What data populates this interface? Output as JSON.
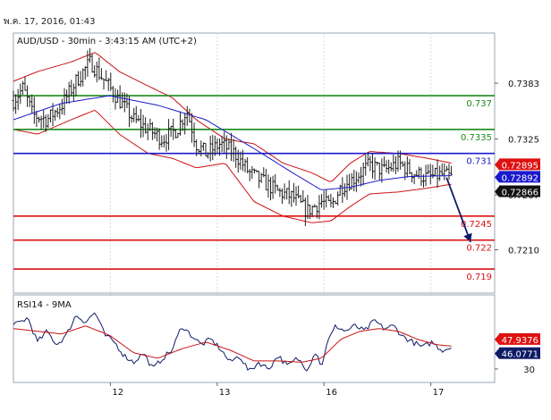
{
  "header": {
    "timestamp": "พ.ค. 17, 2016, 01:43"
  },
  "chart_data": [
    {
      "type": "candlestick",
      "title": "AUD/USD - 30min - 3:43:15 AM (UTC+2)",
      "ylim": [
        0.7165,
        0.7435
      ],
      "y_ticks": [
        {
          "value": 0.7383,
          "label": "0.7383"
        },
        {
          "value": 0.7325,
          "label": "0.7325"
        },
        {
          "value": 0.7267,
          "label": "0.7267"
        },
        {
          "value": 0.721,
          "label": "0.7210"
        }
      ],
      "x_ticks": [
        {
          "t": 0.22,
          "label": "12"
        },
        {
          "t": 0.442,
          "label": "13"
        },
        {
          "t": 0.664,
          "label": "16"
        },
        {
          "t": 0.886,
          "label": "17"
        }
      ],
      "levels": [
        {
          "value": 0.737,
          "label": "0.737",
          "color": "#1b8a1b"
        },
        {
          "value": 0.7335,
          "label": "0.7335",
          "color": "#1b8a1b"
        },
        {
          "value": 0.731,
          "label": "0.731",
          "color": "#1a1acc"
        },
        {
          "value": 0.7245,
          "label": "0.7245",
          "color": "#dd1111"
        },
        {
          "value": 0.722,
          "label": "0.722",
          "color": "#dd1111"
        },
        {
          "value": 0.719,
          "label": "0.719",
          "color": "#dd1111"
        }
      ],
      "badges": [
        {
          "value": 0.7289,
          "label": "0.72895",
          "color": "#dd1111"
        },
        {
          "value": 0.7289,
          "label": "0.72892",
          "color": "#1a1acc"
        },
        {
          "value": 0.7287,
          "label": "0.72866",
          "color": "#111111"
        }
      ],
      "projection": {
        "from": [
          0.9,
          0.7285
        ],
        "to": [
          0.95,
          0.7218
        ],
        "color": "#0d1a66"
      },
      "price_anchors": [
        [
          0.0,
          0.7365
        ],
        [
          0.02,
          0.7378
        ],
        [
          0.04,
          0.735
        ],
        [
          0.07,
          0.7345
        ],
        [
          0.1,
          0.736
        ],
        [
          0.13,
          0.7385
        ],
        [
          0.16,
          0.7405
        ],
        [
          0.19,
          0.7385
        ],
        [
          0.22,
          0.7365
        ],
        [
          0.25,
          0.7345
        ],
        [
          0.28,
          0.7335
        ],
        [
          0.31,
          0.7325
        ],
        [
          0.34,
          0.7335
        ],
        [
          0.36,
          0.7355
        ],
        [
          0.38,
          0.732
        ],
        [
          0.4,
          0.731
        ],
        [
          0.43,
          0.732
        ],
        [
          0.46,
          0.731
        ],
        [
          0.49,
          0.729
        ],
        [
          0.52,
          0.728
        ],
        [
          0.55,
          0.727
        ],
        [
          0.58,
          0.7265
        ],
        [
          0.61,
          0.725
        ],
        [
          0.64,
          0.726
        ],
        [
          0.66,
          0.7255
        ],
        [
          0.68,
          0.7275
        ],
        [
          0.71,
          0.7285
        ],
        [
          0.74,
          0.7298
        ],
        [
          0.77,
          0.7292
        ],
        [
          0.8,
          0.73
        ],
        [
          0.83,
          0.729
        ],
        [
          0.86,
          0.7285
        ],
        [
          0.89,
          0.7288
        ],
        [
          0.91,
          0.7285
        ]
      ],
      "sma_anchors": [
        [
          0.0,
          0.7345
        ],
        [
          0.1,
          0.7362
        ],
        [
          0.2,
          0.737
        ],
        [
          0.3,
          0.736
        ],
        [
          0.4,
          0.7345
        ],
        [
          0.5,
          0.7315
        ],
        [
          0.58,
          0.729
        ],
        [
          0.64,
          0.7272
        ],
        [
          0.7,
          0.7275
        ],
        [
          0.76,
          0.7282
        ],
        [
          0.82,
          0.7286
        ],
        [
          0.91,
          0.7287
        ]
      ],
      "bollinger_upper": [
        [
          0.0,
          0.7385
        ],
        [
          0.05,
          0.7395
        ],
        [
          0.12,
          0.7405
        ],
        [
          0.17,
          0.7415
        ],
        [
          0.22,
          0.7395
        ],
        [
          0.28,
          0.738
        ],
        [
          0.33,
          0.7368
        ],
        [
          0.38,
          0.7345
        ],
        [
          0.44,
          0.7325
        ],
        [
          0.5,
          0.732
        ],
        [
          0.56,
          0.73
        ],
        [
          0.62,
          0.729
        ],
        [
          0.66,
          0.728
        ],
        [
          0.7,
          0.73
        ],
        [
          0.74,
          0.7312
        ],
        [
          0.8,
          0.731
        ],
        [
          0.86,
          0.7305
        ],
        [
          0.91,
          0.73
        ]
      ],
      "bollinger_lower": [
        [
          0.0,
          0.7335
        ],
        [
          0.05,
          0.733
        ],
        [
          0.12,
          0.7345
        ],
        [
          0.17,
          0.7355
        ],
        [
          0.22,
          0.733
        ],
        [
          0.28,
          0.731
        ],
        [
          0.33,
          0.7305
        ],
        [
          0.38,
          0.7295
        ],
        [
          0.44,
          0.73
        ],
        [
          0.5,
          0.726
        ],
        [
          0.56,
          0.7245
        ],
        [
          0.62,
          0.7238
        ],
        [
          0.66,
          0.724
        ],
        [
          0.7,
          0.7255
        ],
        [
          0.74,
          0.7268
        ],
        [
          0.8,
          0.727
        ],
        [
          0.86,
          0.7274
        ],
        [
          0.91,
          0.7278
        ]
      ]
    },
    {
      "type": "line",
      "title": "RSI14 - 9MA",
      "ylim": [
        20,
        85
      ],
      "y_ticks": [
        {
          "value": 30,
          "label": "30"
        }
      ],
      "badges": [
        {
          "value": 47.9376,
          "label": "47.9376",
          "color": "#dd1111"
        },
        {
          "value": 46.0771,
          "label": "46.0771",
          "color": "#0d1a66"
        }
      ],
      "rsi_anchors": [
        [
          0.0,
          62
        ],
        [
          0.03,
          68
        ],
        [
          0.05,
          50
        ],
        [
          0.07,
          58
        ],
        [
          0.09,
          48
        ],
        [
          0.11,
          55
        ],
        [
          0.13,
          70
        ],
        [
          0.15,
          65
        ],
        [
          0.17,
          72
        ],
        [
          0.19,
          55
        ],
        [
          0.21,
          50
        ],
        [
          0.23,
          40
        ],
        [
          0.25,
          35
        ],
        [
          0.27,
          42
        ],
        [
          0.29,
          30
        ],
        [
          0.31,
          38
        ],
        [
          0.33,
          44
        ],
        [
          0.35,
          62
        ],
        [
          0.37,
          55
        ],
        [
          0.39,
          48
        ],
        [
          0.41,
          52
        ],
        [
          0.43,
          45
        ],
        [
          0.45,
          35
        ],
        [
          0.47,
          40
        ],
        [
          0.49,
          28
        ],
        [
          0.51,
          35
        ],
        [
          0.53,
          30
        ],
        [
          0.55,
          40
        ],
        [
          0.57,
          32
        ],
        [
          0.59,
          38
        ],
        [
          0.61,
          30
        ],
        [
          0.63,
          44
        ],
        [
          0.64,
          30
        ],
        [
          0.65,
          48
        ],
        [
          0.67,
          62
        ],
        [
          0.69,
          58
        ],
        [
          0.71,
          62
        ],
        [
          0.73,
          58
        ],
        [
          0.75,
          66
        ],
        [
          0.77,
          60
        ],
        [
          0.79,
          62
        ],
        [
          0.81,
          54
        ],
        [
          0.83,
          50
        ],
        [
          0.85,
          46
        ],
        [
          0.87,
          50
        ],
        [
          0.89,
          44
        ],
        [
          0.91,
          46
        ]
      ],
      "ma_anchors": [
        [
          0.0,
          60
        ],
        [
          0.05,
          58
        ],
        [
          0.1,
          56
        ],
        [
          0.15,
          62
        ],
        [
          0.2,
          55
        ],
        [
          0.25,
          42
        ],
        [
          0.3,
          38
        ],
        [
          0.35,
          45
        ],
        [
          0.4,
          50
        ],
        [
          0.45,
          44
        ],
        [
          0.5,
          36
        ],
        [
          0.55,
          36
        ],
        [
          0.6,
          35
        ],
        [
          0.64,
          38
        ],
        [
          0.68,
          52
        ],
        [
          0.72,
          58
        ],
        [
          0.76,
          60
        ],
        [
          0.8,
          58
        ],
        [
          0.84,
          52
        ],
        [
          0.88,
          48
        ],
        [
          0.91,
          47
        ]
      ]
    }
  ]
}
